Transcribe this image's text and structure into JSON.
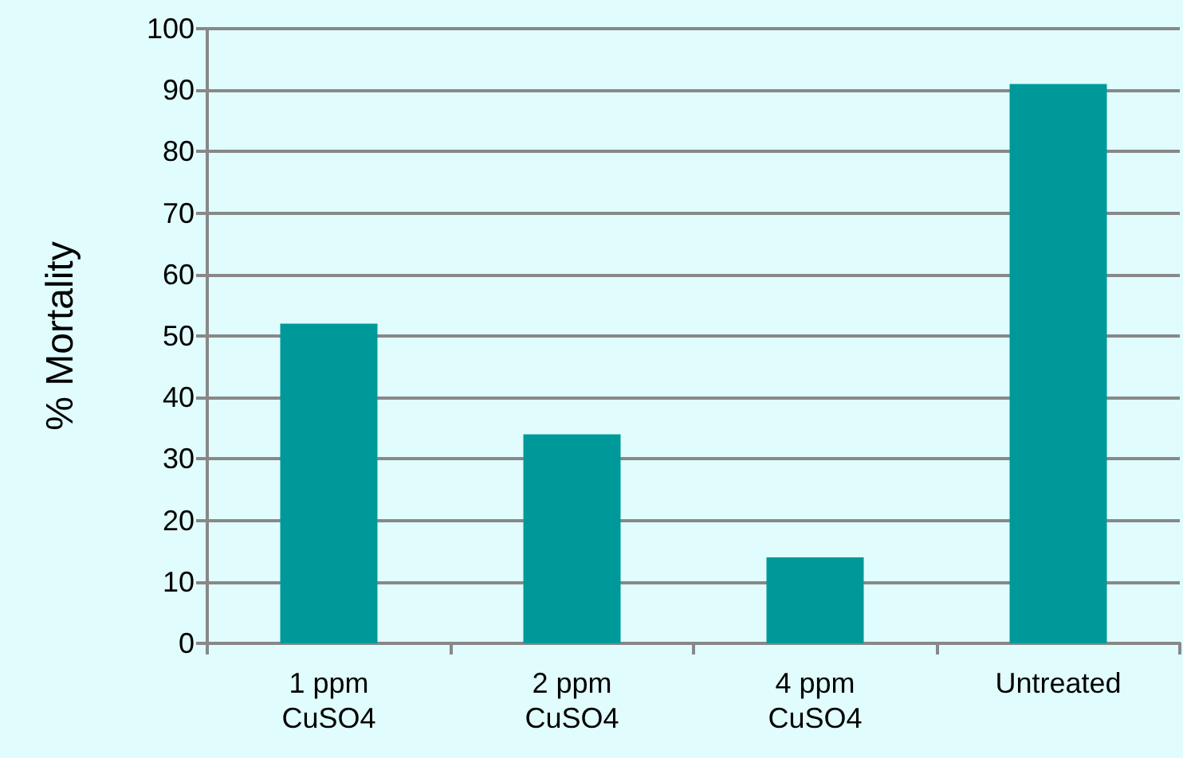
{
  "chart_data": {
    "type": "bar",
    "ylabel": "% Mortality",
    "categories": [
      "1 ppm\nCuSO4",
      "2 ppm\nCuSO4",
      "4 ppm\nCuSO4",
      "Untreated"
    ],
    "values": [
      52,
      34,
      14,
      91
    ],
    "color": "#009999",
    "ylim": [
      0,
      100
    ],
    "yticks": [
      0,
      10,
      20,
      30,
      40,
      50,
      60,
      70,
      80,
      90,
      100
    ],
    "grid": "y"
  }
}
